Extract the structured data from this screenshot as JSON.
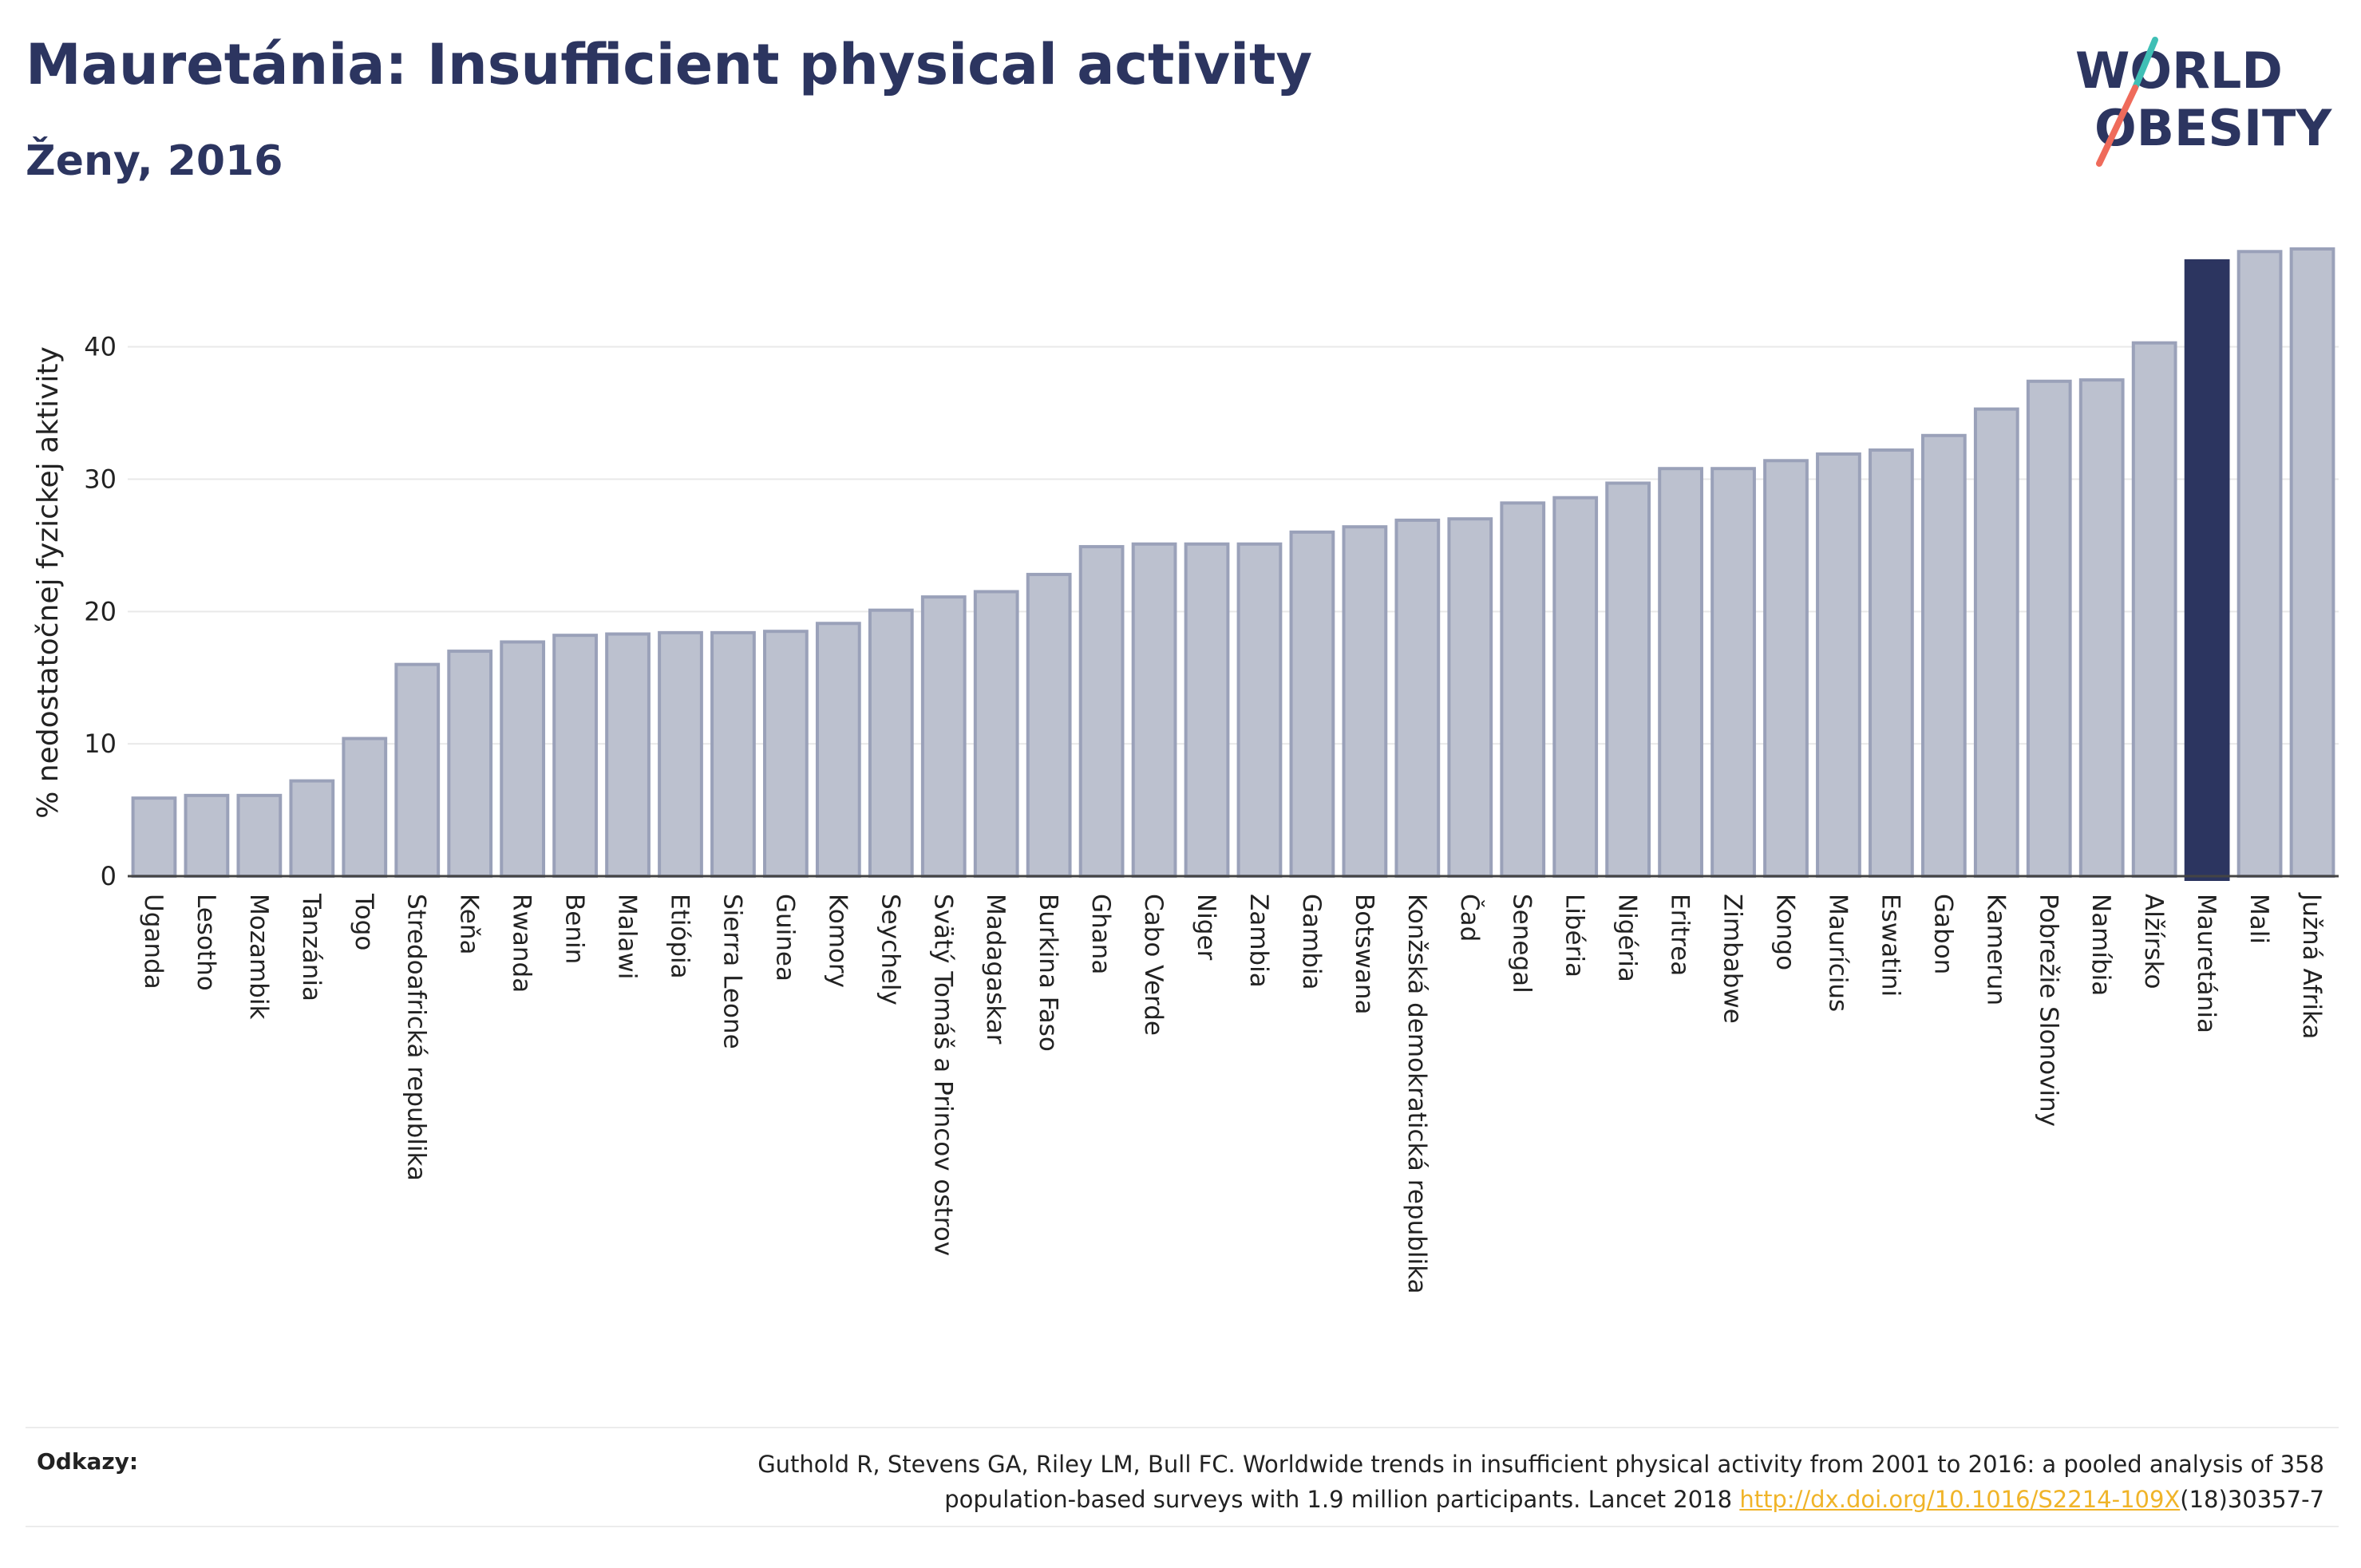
{
  "header": {
    "title": "Mauretánia: Insufficient physical activity",
    "subtitle": "Ženy, 2016"
  },
  "logo": {
    "line1": "WORLD",
    "line2": "OBESITY",
    "colors": {
      "text": "#2c3560",
      "slash_top": "#3fbfb5",
      "slash_bottom": "#ef6b5b"
    }
  },
  "chart_data": {
    "type": "bar",
    "ylabel": "% nedostatočnej fyzickej aktivity",
    "ylim": [
      0,
      48
    ],
    "yticks": [
      0,
      10,
      20,
      30,
      40
    ],
    "grid": true,
    "highlight": "Mauretánia",
    "colors": {
      "bar": "#bcc1cf",
      "bar_border": "#9aa1b9",
      "highlight": "#2c3560",
      "grid": "#e9e9e9",
      "axis": "#444444"
    },
    "categories": [
      "Uganda",
      "Lesotho",
      "Mozambik",
      "Tanzánia",
      "Togo",
      "Stredoafrická republika",
      "Keňa",
      "Rwanda",
      "Benin",
      "Malawi",
      "Etiópia",
      "Sierra Leone",
      "Guinea",
      "Komory",
      "Seychely",
      "Svätý Tomáš a Princov ostrov",
      "Madagaskar",
      "Burkina Faso",
      "Ghana",
      "Cabo Verde",
      "Niger",
      "Zambia",
      "Gambia",
      "Botswana",
      "Konžská demokratická republika",
      "Čad",
      "Senegal",
      "Libéria",
      "Nigéria",
      "Eritrea",
      "Zimbabwe",
      "Kongo",
      "Maurícius",
      "Eswatini",
      "Gabon",
      "Kamerun",
      "Pobrežie Slonoviny",
      "Namíbia",
      "Alžírsko",
      "Mauretánia",
      "Mali",
      "Južná Afrika"
    ],
    "values": [
      5.9,
      6.1,
      6.1,
      7.2,
      10.4,
      16.0,
      17.0,
      17.7,
      18.2,
      18.3,
      18.4,
      18.4,
      18.5,
      19.1,
      20.1,
      21.1,
      21.5,
      22.8,
      24.9,
      25.1,
      25.1,
      25.1,
      26.0,
      26.4,
      26.9,
      27.0,
      28.2,
      28.6,
      29.7,
      30.8,
      30.8,
      31.4,
      31.9,
      32.2,
      33.3,
      35.3,
      37.4,
      37.5,
      40.3,
      46.5,
      47.2,
      47.4
    ]
  },
  "footer": {
    "label": "Odkazy:",
    "reference_line1": "Guthold R, Stevens GA, Riley LM, Bull FC. Worldwide trends in insufficient physical activity from 2001 to 2016: a pooled analysis of 358",
    "reference_line2_prefix": "population-based surveys with 1.9 million participants. Lancet 2018 ",
    "reference_link": "http://dx.doi.org/10.1016/S2214-109X",
    "reference_suffix": "(18)30357-7"
  }
}
